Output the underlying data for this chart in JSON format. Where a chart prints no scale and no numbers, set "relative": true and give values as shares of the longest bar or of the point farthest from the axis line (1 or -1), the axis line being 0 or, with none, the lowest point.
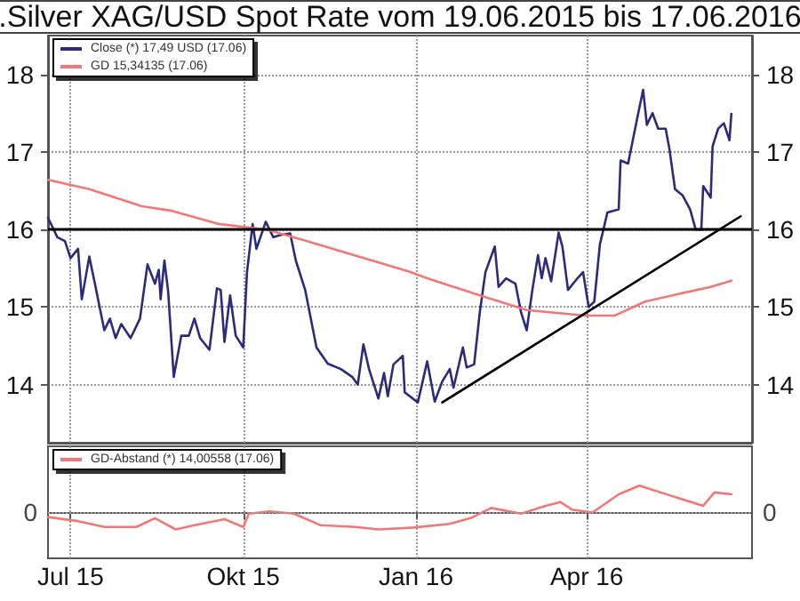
{
  "chart_data": [
    {
      "type": "line",
      "title": ".Silver XAG/USD Spot Rate vom 19.06.2015 bis 17.06.2016",
      "xlim": [
        "2015-06-19",
        "2016-06-28"
      ],
      "xticks": [
        {
          "value": "2015-07-01",
          "label": null
        },
        {
          "value": "2015-10-01",
          "label": null
        },
        {
          "value": "2016-01-01",
          "label": null
        },
        {
          "value": "2016-04-01",
          "label": null
        }
      ],
      "ylim": [
        13.25,
        18.5
      ],
      "yticks": [
        14,
        15,
        16,
        17,
        18
      ],
      "y2lim": [
        13.25,
        18.5
      ],
      "y2ticks": [
        14,
        15,
        16,
        17,
        18
      ],
      "tick_labels": "y",
      "grid": true,
      "legend": "top left",
      "marker": "none",
      "line_style": "solid",
      "series": [
        {
          "name": "Close (*) 17,49 USD (17.06)",
          "color": "#2b2b7a",
          "x": [
            "2015-06-19",
            "2015-06-24",
            "2015-06-28",
            "2015-07-01",
            "2015-07-05",
            "2015-07-07",
            "2015-07-11",
            "2015-07-14",
            "2015-07-19",
            "2015-07-22",
            "2015-07-25",
            "2015-07-28",
            "2015-08-02",
            "2015-08-07",
            "2015-08-11",
            "2015-08-15",
            "2015-08-17",
            "2015-08-18",
            "2015-08-20",
            "2015-08-22",
            "2015-08-25",
            "2015-08-29",
            "2015-09-02",
            "2015-09-05",
            "2015-09-08",
            "2015-09-13",
            "2015-09-17",
            "2015-09-19",
            "2015-09-21",
            "2015-09-24",
            "2015-09-27",
            "2015-10-01",
            "2015-10-03",
            "2015-10-06",
            "2015-10-08",
            "2015-10-13",
            "2015-10-17",
            "2015-10-21",
            "2015-10-26",
            "2015-10-29",
            "2015-11-03",
            "2015-11-09",
            "2015-11-15",
            "2015-11-22",
            "2015-11-28",
            "2015-12-01",
            "2015-12-04",
            "2015-12-07",
            "2015-12-12",
            "2015-12-15",
            "2015-12-17",
            "2015-12-20",
            "2015-12-25",
            "2015-12-26",
            "2016-01-02",
            "2016-01-07",
            "2016-01-11",
            "2016-01-15",
            "2016-01-19",
            "2016-01-21",
            "2016-01-26",
            "2016-01-28",
            "2016-02-01",
            "2016-02-04",
            "2016-02-07",
            "2016-02-12",
            "2016-02-14",
            "2016-02-18",
            "2016-02-23",
            "2016-02-26",
            "2016-02-29",
            "2016-03-03",
            "2016-03-06",
            "2016-03-08",
            "2016-03-10",
            "2016-03-13",
            "2016-03-17",
            "2016-03-19",
            "2016-03-22",
            "2016-03-27",
            "2016-03-30",
            "2016-04-02",
            "2016-04-05",
            "2016-04-08",
            "2016-04-12",
            "2016-04-18",
            "2016-04-19",
            "2016-04-23",
            "2016-04-28",
            "2016-05-01",
            "2016-05-03",
            "2016-05-06",
            "2016-05-09",
            "2016-05-13",
            "2016-05-15",
            "2016-05-18",
            "2016-05-22",
            "2016-05-26",
            "2016-05-29",
            "2016-06-01",
            "2016-06-02",
            "2016-06-06",
            "2016-06-07",
            "2016-06-10",
            "2016-06-13",
            "2016-06-16",
            "2016-06-17"
          ],
          "values": [
            16.15,
            15.9,
            15.85,
            15.63,
            15.75,
            15.1,
            15.65,
            15.3,
            14.7,
            14.85,
            14.6,
            14.78,
            14.6,
            14.85,
            15.55,
            15.3,
            15.48,
            15.1,
            15.6,
            15.2,
            14.1,
            14.63,
            14.63,
            14.85,
            14.6,
            14.45,
            15.24,
            15.22,
            14.55,
            15.15,
            14.63,
            14.48,
            15.45,
            16.07,
            15.75,
            16.1,
            15.9,
            15.93,
            15.95,
            15.6,
            15.22,
            14.48,
            14.27,
            14.2,
            14.1,
            14.0,
            14.52,
            14.2,
            13.82,
            14.15,
            13.85,
            14.26,
            14.37,
            13.9,
            13.77,
            14.3,
            13.78,
            14.04,
            14.2,
            13.96,
            14.48,
            14.22,
            14.26,
            14.93,
            15.45,
            15.78,
            15.26,
            15.37,
            15.3,
            14.93,
            14.7,
            15.22,
            15.67,
            15.37,
            15.63,
            15.33,
            15.96,
            15.78,
            15.22,
            15.37,
            15.45,
            15.0,
            15.07,
            15.81,
            16.22,
            16.26,
            16.89,
            16.85,
            17.45,
            17.8,
            17.35,
            17.5,
            17.3,
            17.3,
            17.04,
            16.52,
            16.44,
            16.26,
            16.0,
            16.0,
            16.56,
            16.41,
            17.07,
            17.3,
            17.37,
            17.15,
            17.49
          ]
        },
        {
          "name": "GD 15,34135 (17.06)",
          "color": "#f07878",
          "x": [
            "2015-06-19",
            "2015-07-11",
            "2015-08-08",
            "2015-08-24",
            "2015-09-18",
            "2015-10-13",
            "2015-11-04",
            "2015-11-29",
            "2015-12-28",
            "2016-01-07",
            "2016-02-04",
            "2016-02-29",
            "2016-03-31",
            "2016-04-16",
            "2016-05-02",
            "2016-05-22",
            "2016-06-06",
            "2016-06-17"
          ],
          "values": [
            16.64,
            16.52,
            16.3,
            16.24,
            16.07,
            16.0,
            15.85,
            15.67,
            15.46,
            15.37,
            15.15,
            14.96,
            14.89,
            14.89,
            15.07,
            15.18,
            15.26,
            15.34
          ]
        },
        {
          "type": "line",
          "color": "#000000",
          "x": [
            "2016-01-15",
            "2016-06-22"
          ],
          "values": [
            13.77,
            16.17
          ]
        }
      ],
      "ref_lines": [
        {
          "axis": "y",
          "value": 16,
          "color": "#000000",
          "line_style": "solid"
        }
      ]
    },
    {
      "type": "line",
      "xlim": [
        "2015-06-19",
        "2016-06-28"
      ],
      "xticks": [
        {
          "value": "2015-07-01",
          "label": "Jul 15"
        },
        {
          "value": "2015-10-01",
          "label": "Okt 15"
        },
        {
          "value": "2016-01-01",
          "label": "Jan 16"
        },
        {
          "value": "2016-04-01",
          "label": "Apr 16"
        }
      ],
      "relative": true,
      "annotations": [
        "0",
        "0"
      ],
      "grid": "x",
      "legend": "top left",
      "marker": "none",
      "line_style": "solid",
      "series": [
        {
          "name": "GD-Abstand (*) 14,00558 (17.06)",
          "color": "#f07878",
          "x": [
            "2015-06-19",
            "2015-07-05",
            "2015-07-19",
            "2015-08-05",
            "2015-08-15",
            "2015-08-26",
            "2015-09-05",
            "2015-09-21",
            "2015-10-01",
            "2015-10-04",
            "2015-10-15",
            "2015-10-28",
            "2015-11-11",
            "2015-11-30",
            "2015-12-12",
            "2015-12-31",
            "2016-01-19",
            "2016-01-30",
            "2016-02-10",
            "2016-02-26",
            "2016-03-10",
            "2016-03-18",
            "2016-03-24",
            "2016-04-04",
            "2016-04-18",
            "2016-04-29",
            "2016-05-17",
            "2016-06-02",
            "2016-06-08",
            "2016-06-17"
          ],
          "values": [
            -0.17,
            -0.32,
            -0.54,
            -0.54,
            -0.21,
            -0.63,
            -0.47,
            -0.25,
            -0.54,
            -0.04,
            0.04,
            -0.04,
            -0.47,
            -0.54,
            -0.63,
            -0.56,
            -0.42,
            -0.21,
            0.17,
            -0.04,
            0.25,
            0.39,
            0.11,
            0,
            0.68,
            1,
            0.6,
            0.25,
            0.75,
            0.68
          ]
        }
      ]
    }
  ]
}
